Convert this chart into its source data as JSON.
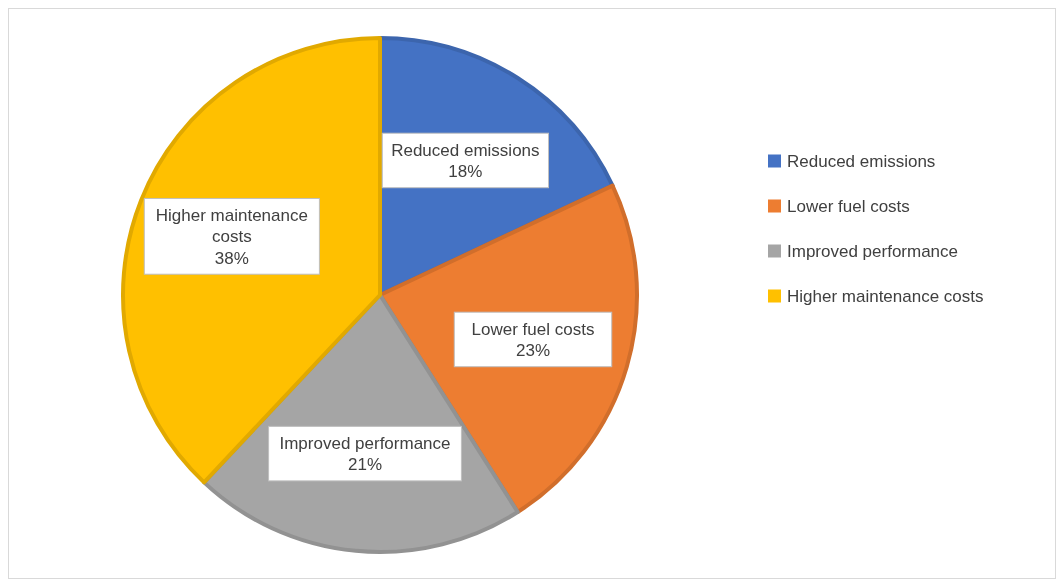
{
  "chart_data": {
    "type": "pie",
    "categories": [
      "Reduced emissions",
      "Lower fuel costs",
      "Improved performance",
      "Higher maintenance costs"
    ],
    "values": [
      18,
      23,
      21,
      38
    ],
    "value_labels": [
      "18%",
      "23%",
      "21%",
      "38%"
    ],
    "colors": [
      "#4472c4",
      "#ed7d31",
      "#a5a5a5",
      "#ffc000"
    ],
    "legend": "right"
  }
}
